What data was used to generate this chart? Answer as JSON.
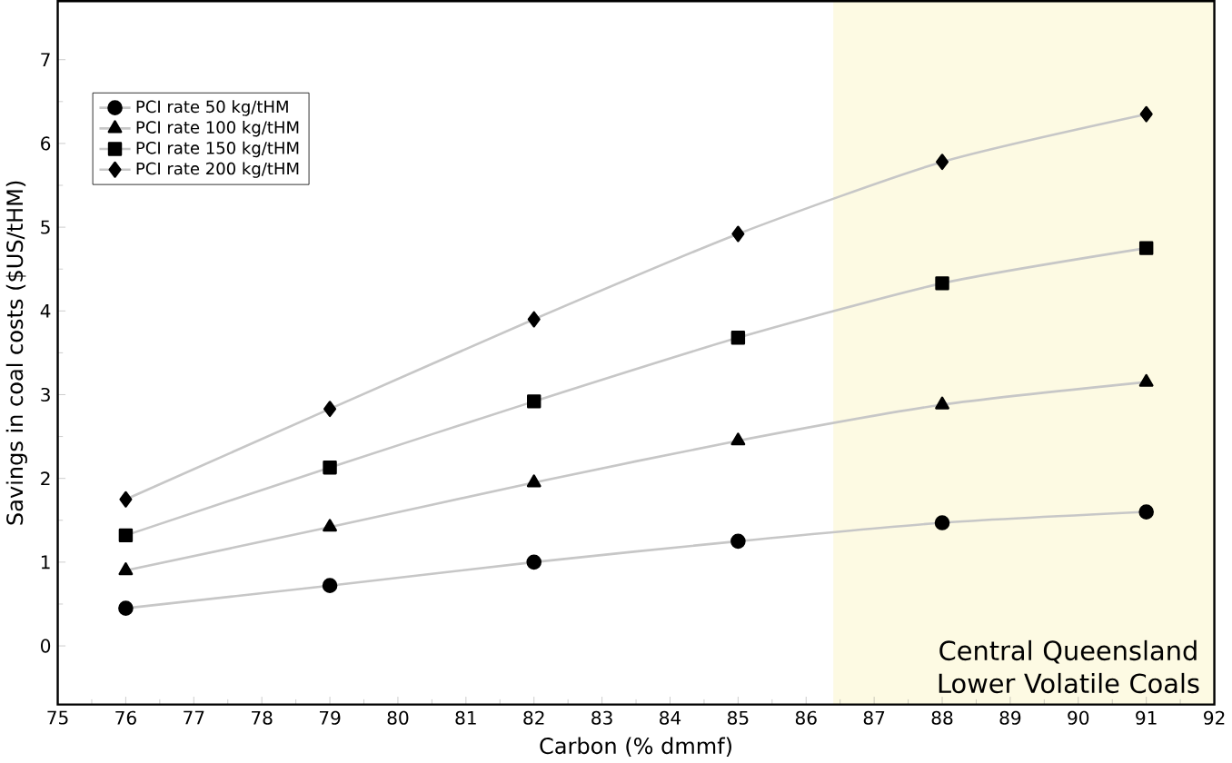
{
  "chart_data": {
    "type": "line",
    "xlabel": "Carbon (% dmmf)",
    "ylabel": "Savings in coal costs ($US/tHM)",
    "x": [
      76,
      79,
      82,
      85,
      88,
      91
    ],
    "series": [
      {
        "name": "PCI rate 50 kg/tHM",
        "color": "#000000",
        "marker": "circle",
        "values": [
          0.45,
          0.72,
          1.0,
          1.25,
          1.47,
          1.6
        ]
      },
      {
        "name": "PCI rate 100 kg/tHM",
        "color": "#000000",
        "marker": "triangle",
        "values": [
          0.9,
          1.42,
          1.95,
          2.45,
          2.88,
          3.15
        ]
      },
      {
        "name": "PCI rate 150 kg/tHM",
        "color": "#000000",
        "marker": "square",
        "values": [
          1.32,
          2.13,
          2.92,
          3.68,
          4.33,
          4.75
        ]
      },
      {
        "name": "PCI rate 200 kg/tHM",
        "color": "#000000",
        "marker": "diamond",
        "values": [
          1.75,
          2.83,
          3.9,
          4.92,
          5.78,
          6.35
        ]
      }
    ],
    "bands": [
      {
        "axis": "x",
        "from": 86.4,
        "to": 92,
        "label": "Central Queensland Lower Volatile Coals",
        "color": "#fdfae3"
      }
    ],
    "xlim": [
      75,
      92
    ],
    "ylim": [
      -0.7,
      7.7
    ],
    "xticks": [
      75,
      76,
      77,
      78,
      79,
      80,
      81,
      82,
      83,
      84,
      85,
      86,
      87,
      88,
      89,
      90,
      91,
      92
    ],
    "yticks": [
      0,
      1,
      2,
      3,
      4,
      5,
      6,
      7
    ],
    "grid": false,
    "legend": "top left"
  }
}
